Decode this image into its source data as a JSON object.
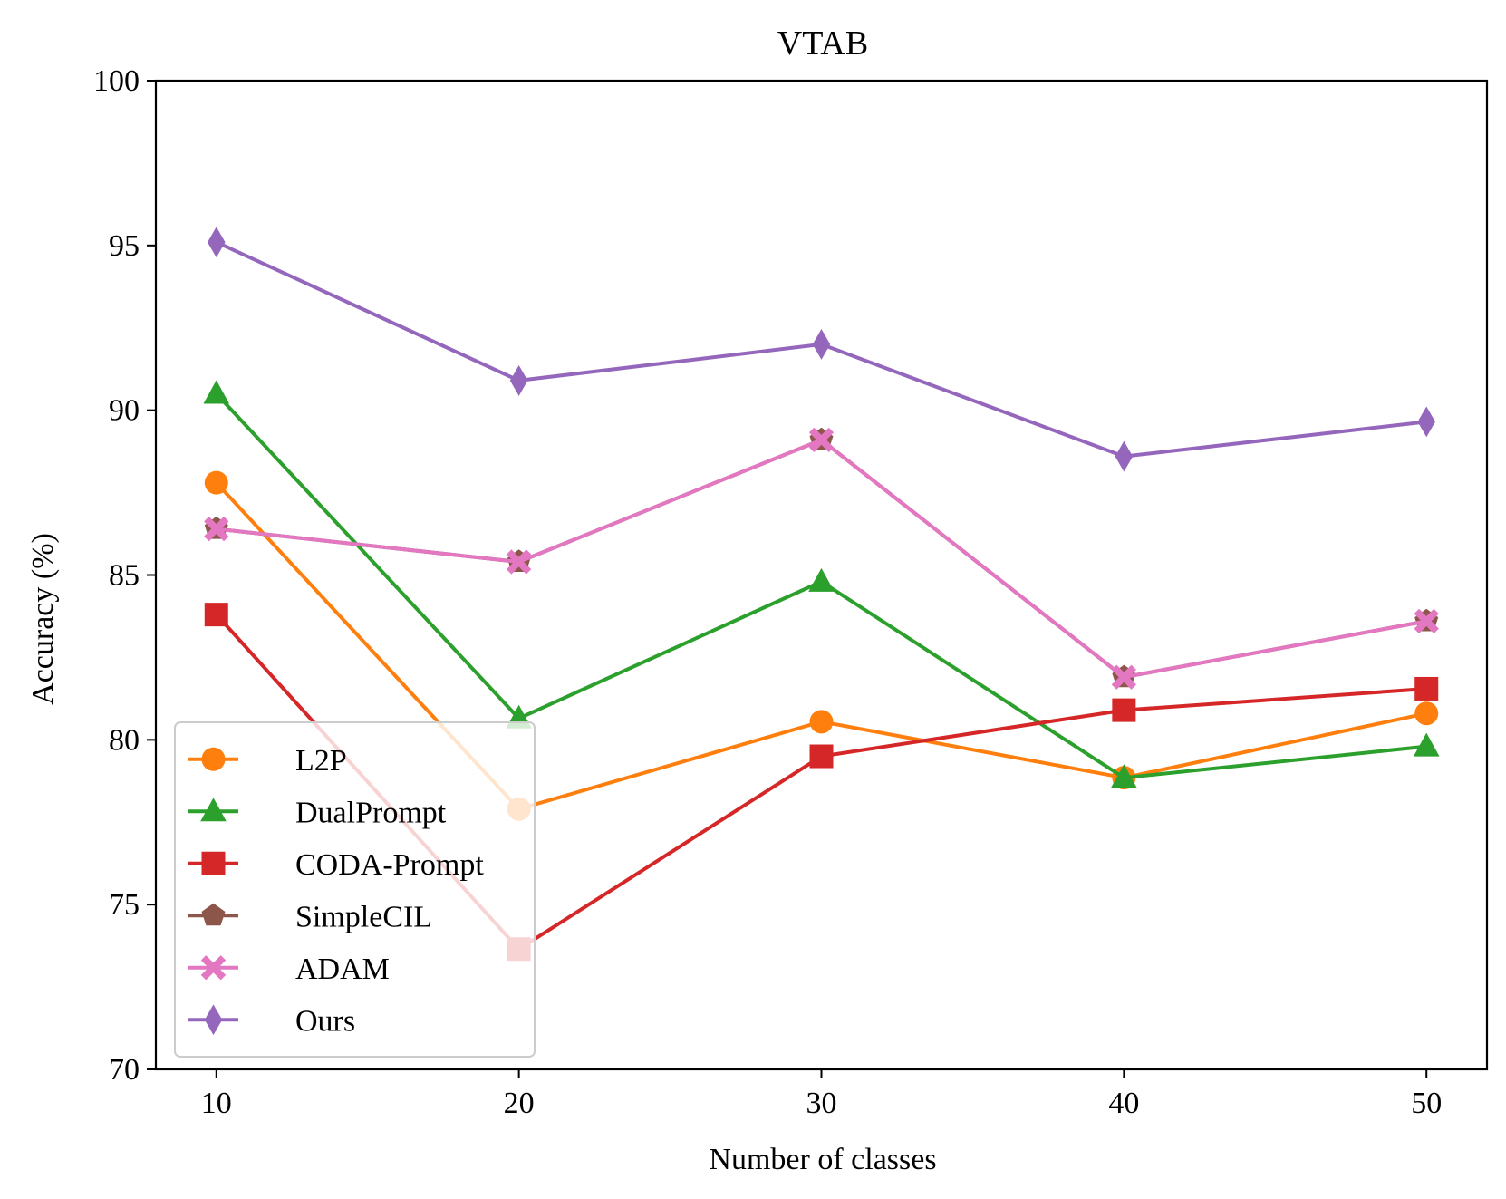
{
  "chart_data": {
    "type": "line",
    "title": "VTAB",
    "xlabel": "Number of classes",
    "ylabel": "Accuracy (%)",
    "x": [
      10,
      20,
      30,
      40,
      50
    ],
    "xlim": [
      8,
      52
    ],
    "ylim": [
      70,
      100
    ],
    "xticks": [
      10,
      20,
      30,
      40,
      50
    ],
    "yticks": [
      70,
      75,
      80,
      85,
      90,
      95,
      100
    ],
    "xtick_labels": [
      "10",
      "20",
      "30",
      "40",
      "50"
    ],
    "ytick_labels": [
      "70",
      "75",
      "80",
      "85",
      "90",
      "95",
      "100"
    ],
    "grid": false,
    "legend_position": "lower-left",
    "series": [
      {
        "name": "L2P",
        "color": "#ff7f0e",
        "marker": "circle",
        "values": [
          87.8,
          77.9,
          80.55,
          78.85,
          80.8
        ]
      },
      {
        "name": "DualPrompt",
        "color": "#2ca02c",
        "marker": "triangle",
        "values": [
          90.5,
          80.65,
          84.8,
          78.85,
          79.8
        ]
      },
      {
        "name": "CODA-Prompt",
        "color": "#d62728",
        "marker": "square",
        "values": [
          83.8,
          73.65,
          79.5,
          80.9,
          81.55
        ]
      },
      {
        "name": "SimpleCIL",
        "color": "#8c564b",
        "marker": "pentagon",
        "values": [
          86.4,
          85.4,
          89.1,
          81.9,
          83.6
        ]
      },
      {
        "name": "ADAM",
        "color": "#e377c2",
        "marker": "x-filled",
        "values": [
          86.4,
          85.4,
          89.1,
          81.9,
          83.6
        ]
      },
      {
        "name": "Ours",
        "color": "#9467bd",
        "marker": "diamond",
        "values": [
          95.1,
          90.9,
          92.0,
          88.6,
          89.65
        ]
      }
    ]
  }
}
